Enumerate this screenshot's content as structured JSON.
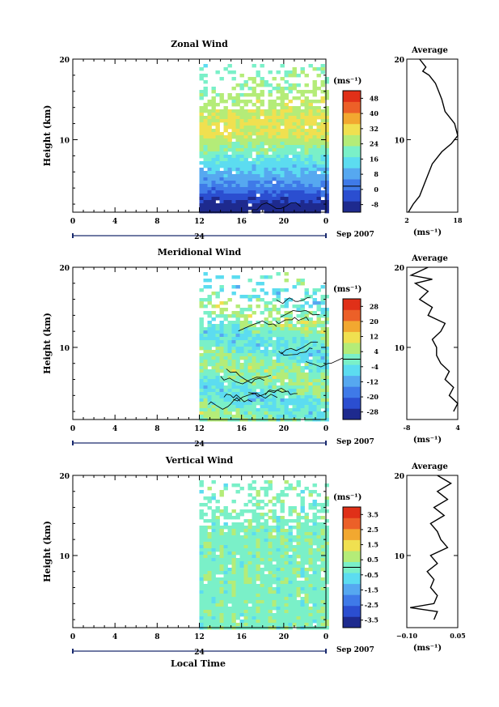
{
  "date_label": "Sep 2007",
  "bottom_xlabel": "Local Time",
  "colorbar_unit": "(ms⁻¹)",
  "average_title": "Average",
  "average_unit": "(ms⁻¹)",
  "colors": [
    "#1e2a8e",
    "#2b4ed0",
    "#3f7ae8",
    "#56a8f0",
    "#5cdcf0",
    "#7af0c8",
    "#b4ec78",
    "#f0e050",
    "#f2a830",
    "#ec6028",
    "#e03018"
  ],
  "chart_data": [
    {
      "type": "heatmap",
      "title": "Zonal Wind",
      "ylabel": "Height (km)",
      "ylim": [
        1,
        20
      ],
      "yticks": [
        10,
        20
      ],
      "x_ticks": [
        "0",
        "4",
        "8",
        "12",
        "16",
        "20",
        "0"
      ],
      "day_label": "24",
      "data_start_hour": 12,
      "colorbar_ticks": [
        "48",
        "40",
        "32",
        "24",
        "16",
        "8",
        "0",
        "-8"
      ],
      "colorbar_range": [
        -12,
        52
      ],
      "field": {
        "surface_min": -10,
        "upper_max": 30,
        "jet_peak": 26,
        "jet_height": 11,
        "trend_per_hour": 0,
        "noise": 3,
        "drop_upper_from_km": 14
      },
      "average": {
        "xlim": [
          2,
          18
        ],
        "xticks": [
          "2",
          "18"
        ],
        "profile": [
          [
            2.5,
            1
          ],
          [
            4,
            2
          ],
          [
            6,
            3
          ],
          [
            8,
            5
          ],
          [
            10,
            7
          ],
          [
            13,
            8.5
          ],
          [
            16,
            9.5
          ],
          [
            18,
            10.5
          ],
          [
            17,
            12
          ],
          [
            14,
            13.5
          ],
          [
            13,
            15
          ],
          [
            12,
            16
          ],
          [
            11,
            17
          ],
          [
            9,
            18
          ],
          [
            7,
            18.5
          ],
          [
            8,
            19
          ],
          [
            6,
            20
          ]
        ]
      }
    },
    {
      "type": "heatmap",
      "title": "Meridional Wind",
      "ylabel": "Height (km)",
      "ylim": [
        1,
        20
      ],
      "yticks": [
        10,
        20
      ],
      "x_ticks": [
        "0",
        "4",
        "8",
        "12",
        "16",
        "20",
        "0"
      ],
      "day_label": "24",
      "data_start_hour": 12,
      "colorbar_ticks": [
        "28",
        "20",
        "12",
        "4",
        "-4",
        "-12",
        "-20",
        "-28"
      ],
      "colorbar_range": [
        -32,
        32
      ],
      "field": {
        "base": 0,
        "amplitude": 8,
        "noise": 5,
        "drop_upper_from_km": 13
      },
      "average": {
        "xlim": [
          -8,
          4
        ],
        "xticks": [
          "-8",
          "4"
        ],
        "profile": [
          [
            3,
            2
          ],
          [
            4,
            3
          ],
          [
            2,
            4
          ],
          [
            3,
            5
          ],
          [
            1,
            6
          ],
          [
            2,
            7
          ],
          [
            0,
            8
          ],
          [
            -1,
            9
          ],
          [
            -1,
            10
          ],
          [
            -2,
            11
          ],
          [
            0,
            12
          ],
          [
            1,
            13
          ],
          [
            -3,
            14
          ],
          [
            -2,
            15
          ],
          [
            -5,
            16
          ],
          [
            -3,
            17
          ],
          [
            -6,
            18
          ],
          [
            -2,
            18.5
          ],
          [
            -7,
            19
          ],
          [
            -3,
            20
          ]
        ]
      }
    },
    {
      "type": "heatmap",
      "title": "Vertical Wind",
      "ylabel": "Height (km)",
      "ylim": [
        1,
        20
      ],
      "yticks": [
        10,
        20
      ],
      "x_ticks": [
        "0",
        "4",
        "8",
        "12",
        "16",
        "20",
        "0"
      ],
      "day_label": "24",
      "data_start_hour": 12,
      "colorbar_ticks": [
        "3.5",
        "2.5",
        "1.5",
        "0.5",
        "-0.5",
        "-1.5",
        "-2.5",
        "-3.5"
      ],
      "colorbar_range": [
        -4,
        4
      ],
      "field": {
        "base": 0.1,
        "amplitude": 0.2,
        "noise": 0.4,
        "drop_upper_from_km": 14
      },
      "average": {
        "xlim": [
          -0.1,
          0.05
        ],
        "xticks": [
          "−0.10",
          "0.05"
        ],
        "profile": [
          [
            -0.02,
            2
          ],
          [
            -0.01,
            3
          ],
          [
            -0.09,
            3.5
          ],
          [
            -0.02,
            4
          ],
          [
            -0.01,
            5
          ],
          [
            -0.03,
            6
          ],
          [
            -0.02,
            7
          ],
          [
            -0.04,
            8
          ],
          [
            -0.01,
            9
          ],
          [
            -0.03,
            10
          ],
          [
            0.02,
            11
          ],
          [
            0.0,
            12
          ],
          [
            -0.01,
            13
          ],
          [
            -0.03,
            14
          ],
          [
            0.01,
            15
          ],
          [
            -0.02,
            16
          ],
          [
            0.02,
            17
          ],
          [
            -0.01,
            18
          ],
          [
            0.03,
            19
          ],
          [
            -0.01,
            20
          ]
        ]
      }
    }
  ]
}
